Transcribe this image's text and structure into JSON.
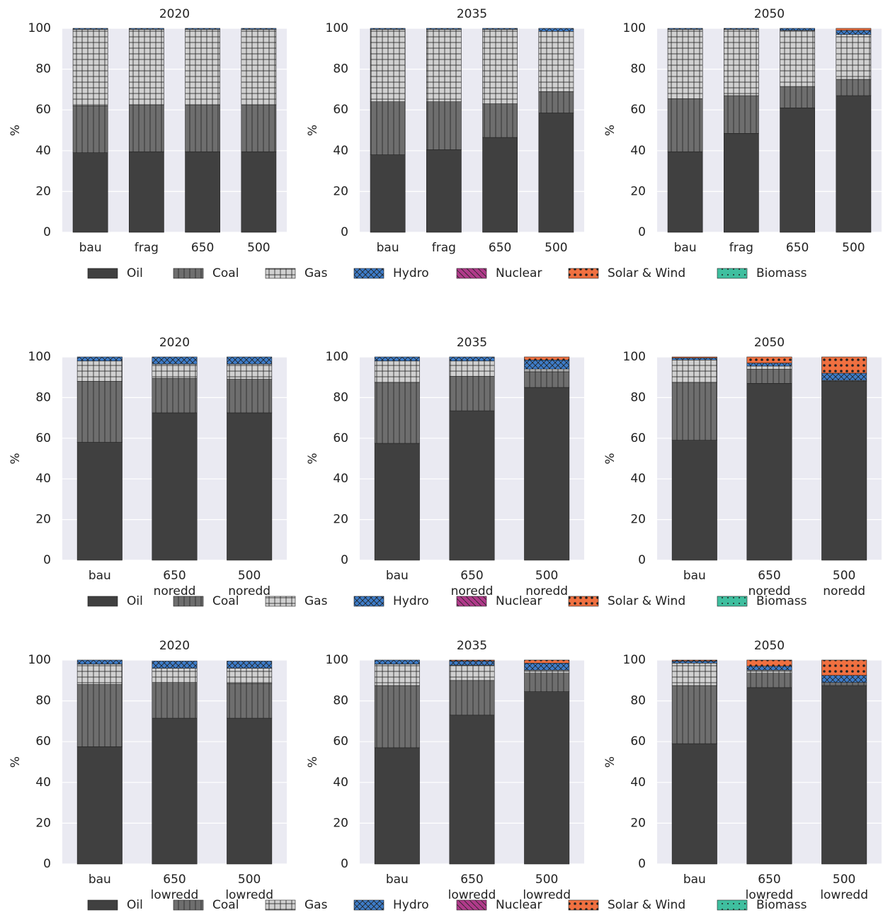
{
  "chart_data": [
    {
      "type": "bar",
      "stacked": true,
      "title": "2020",
      "ylabel": "%",
      "categories": [
        "bau",
        "frag",
        "650",
        "500"
      ],
      "ylim": [
        0,
        100
      ],
      "yticks": [
        0,
        20,
        40,
        60,
        80,
        100
      ],
      "grid": true,
      "series": [
        {
          "name": "Oil",
          "color": "#404040",
          "hatch": "",
          "values": [
            39,
            39.5,
            39.5,
            39.5
          ]
        },
        {
          "name": "Coal",
          "color": "#6e6e6e",
          "hatch": "|",
          "values": [
            23,
            23,
            23,
            23
          ]
        },
        {
          "name": "Gas",
          "color": "#d0d0d0",
          "hatch": "+",
          "values": [
            37.5,
            37,
            37,
            37
          ]
        },
        {
          "name": "Hydro",
          "color": "#3d7cc9",
          "hatch": "x",
          "values": [
            0.5,
            0.5,
            0.5,
            0.5
          ]
        },
        {
          "name": "Nuclear",
          "color": "#b03a8a",
          "hatch": "\\",
          "values": [
            0,
            0,
            0,
            0
          ]
        },
        {
          "name": "Solar & Wind",
          "color": "#f07040",
          "hatch": "o",
          "values": [
            0,
            0,
            0,
            0
          ]
        },
        {
          "name": "Biomass",
          "color": "#3fbf9f",
          "hatch": ".",
          "values": [
            0,
            0,
            0,
            0
          ]
        }
      ]
    },
    {
      "type": "bar",
      "stacked": true,
      "title": "2035",
      "ylabel": "%",
      "categories": [
        "bau",
        "frag",
        "650",
        "500"
      ],
      "ylim": [
        0,
        100
      ],
      "yticks": [
        0,
        20,
        40,
        60,
        80,
        100
      ],
      "grid": true,
      "series": [
        {
          "name": "Oil",
          "color": "#404040",
          "hatch": "",
          "values": [
            38,
            40.5,
            46.5,
            58.5
          ]
        },
        {
          "name": "Coal",
          "color": "#6e6e6e",
          "hatch": "|",
          "values": [
            26,
            23.5,
            16.5,
            10.5
          ]
        },
        {
          "name": "Gas",
          "color": "#d0d0d0",
          "hatch": "+",
          "values": [
            35.5,
            35.5,
            36.5,
            29.5
          ]
        },
        {
          "name": "Hydro",
          "color": "#3d7cc9",
          "hatch": "x",
          "values": [
            0.5,
            0.5,
            0.5,
            1.5
          ]
        },
        {
          "name": "Nuclear",
          "color": "#b03a8a",
          "hatch": "\\",
          "values": [
            0,
            0,
            0,
            0
          ]
        },
        {
          "name": "Solar & Wind",
          "color": "#f07040",
          "hatch": "o",
          "values": [
            0,
            0,
            0,
            0
          ]
        },
        {
          "name": "Biomass",
          "color": "#3fbf9f",
          "hatch": ".",
          "values": [
            0,
            0,
            0,
            0
          ]
        }
      ]
    },
    {
      "type": "bar",
      "stacked": true,
      "title": "2050",
      "ylabel": "%",
      "categories": [
        "bau",
        "frag",
        "650",
        "500"
      ],
      "ylim": [
        0,
        100
      ],
      "yticks": [
        0,
        20,
        40,
        60,
        80,
        100
      ],
      "grid": true,
      "series": [
        {
          "name": "Oil",
          "color": "#404040",
          "hatch": "",
          "values": [
            39.5,
            48.5,
            61,
            67
          ]
        },
        {
          "name": "Coal",
          "color": "#6e6e6e",
          "hatch": "|",
          "values": [
            26,
            18.5,
            10.5,
            8
          ]
        },
        {
          "name": "Gas",
          "color": "#d0d0d0",
          "hatch": "+",
          "values": [
            34,
            32.5,
            27.5,
            22
          ]
        },
        {
          "name": "Hydro",
          "color": "#3d7cc9",
          "hatch": "x",
          "values": [
            0.5,
            0.5,
            1,
            2
          ]
        },
        {
          "name": "Nuclear",
          "color": "#b03a8a",
          "hatch": "\\",
          "values": [
            0,
            0,
            0,
            0
          ]
        },
        {
          "name": "Solar & Wind",
          "color": "#f07040",
          "hatch": "o",
          "values": [
            0,
            0,
            0,
            1
          ]
        },
        {
          "name": "Biomass",
          "color": "#3fbf9f",
          "hatch": ".",
          "values": [
            0,
            0,
            0,
            0
          ]
        }
      ]
    },
    {
      "type": "bar",
      "stacked": true,
      "title": "2020",
      "ylabel": "%",
      "categories": [
        "bau",
        "650\nnoredd",
        "500\nnoredd"
      ],
      "ylim": [
        0,
        100
      ],
      "yticks": [
        0,
        20,
        40,
        60,
        80,
        100
      ],
      "grid": true,
      "series": [
        {
          "name": "Oil",
          "color": "#404040",
          "hatch": "",
          "values": [
            58,
            72.5,
            72.5
          ]
        },
        {
          "name": "Coal",
          "color": "#6e6e6e",
          "hatch": "|",
          "values": [
            30,
            17,
            16.5
          ]
        },
        {
          "name": "Gas",
          "color": "#d0d0d0",
          "hatch": "+",
          "values": [
            10,
            7,
            7.5
          ]
        },
        {
          "name": "Hydro",
          "color": "#3d7cc9",
          "hatch": "x",
          "values": [
            2,
            3.5,
            3.5
          ]
        },
        {
          "name": "Nuclear",
          "color": "#b03a8a",
          "hatch": "\\",
          "values": [
            0,
            0,
            0
          ]
        },
        {
          "name": "Solar & Wind",
          "color": "#f07040",
          "hatch": "o",
          "values": [
            0,
            0,
            0
          ]
        },
        {
          "name": "Biomass",
          "color": "#3fbf9f",
          "hatch": ".",
          "values": [
            0,
            0,
            0
          ]
        }
      ]
    },
    {
      "type": "bar",
      "stacked": true,
      "title": "2035",
      "ylabel": "%",
      "categories": [
        "bau",
        "650\nnoredd",
        "500\nnoredd"
      ],
      "ylim": [
        0,
        100
      ],
      "yticks": [
        0,
        20,
        40,
        60,
        80,
        100
      ],
      "grid": true,
      "series": [
        {
          "name": "Oil",
          "color": "#404040",
          "hatch": "",
          "values": [
            57.5,
            73.5,
            85
          ]
        },
        {
          "name": "Coal",
          "color": "#6e6e6e",
          "hatch": "|",
          "values": [
            30,
            17,
            7.5
          ]
        },
        {
          "name": "Gas",
          "color": "#d0d0d0",
          "hatch": "+",
          "values": [
            10.5,
            7.5,
            1.5
          ]
        },
        {
          "name": "Hydro",
          "color": "#3d7cc9",
          "hatch": "x",
          "values": [
            2,
            2,
            4.5
          ]
        },
        {
          "name": "Nuclear",
          "color": "#b03a8a",
          "hatch": "\\",
          "values": [
            0,
            0,
            0
          ]
        },
        {
          "name": "Solar & Wind",
          "color": "#f07040",
          "hatch": "o",
          "values": [
            0,
            0,
            1.5
          ]
        },
        {
          "name": "Biomass",
          "color": "#3fbf9f",
          "hatch": ".",
          "values": [
            0,
            0,
            0
          ]
        }
      ]
    },
    {
      "type": "bar",
      "stacked": true,
      "title": "2050",
      "ylabel": "%",
      "categories": [
        "bau",
        "650\nnoredd",
        "500\nnoredd"
      ],
      "ylim": [
        0,
        100
      ],
      "yticks": [
        0,
        20,
        40,
        60,
        80,
        100
      ],
      "grid": true,
      "series": [
        {
          "name": "Oil",
          "color": "#404040",
          "hatch": "",
          "values": [
            59,
            87,
            88
          ]
        },
        {
          "name": "Coal",
          "color": "#6e6e6e",
          "hatch": "|",
          "values": [
            28.5,
            7,
            0.5
          ]
        },
        {
          "name": "Gas",
          "color": "#d0d0d0",
          "hatch": "+",
          "values": [
            11,
            1.5,
            0
          ]
        },
        {
          "name": "Hydro",
          "color": "#3d7cc9",
          "hatch": "x",
          "values": [
            1,
            1.5,
            3.5
          ]
        },
        {
          "name": "Nuclear",
          "color": "#b03a8a",
          "hatch": "\\",
          "values": [
            0,
            0,
            0
          ]
        },
        {
          "name": "Solar & Wind",
          "color": "#f07040",
          "hatch": "o",
          "values": [
            0.5,
            3,
            8
          ]
        },
        {
          "name": "Biomass",
          "color": "#3fbf9f",
          "hatch": ".",
          "values": [
            0,
            0,
            0
          ]
        }
      ]
    },
    {
      "type": "bar",
      "stacked": true,
      "title": "2020",
      "ylabel": "%",
      "categories": [
        "bau",
        "650\nlowredd",
        "500\nlowredd"
      ],
      "ylim": [
        0,
        100
      ],
      "yticks": [
        0,
        20,
        40,
        60,
        80,
        100
      ],
      "grid": true,
      "series": [
        {
          "name": "Oil",
          "color": "#404040",
          "hatch": "",
          "values": [
            57.5,
            71.5,
            71.5
          ]
        },
        {
          "name": "Coal",
          "color": "#6e6e6e",
          "hatch": "|",
          "values": [
            30.5,
            17.5,
            17
          ]
        },
        {
          "name": "Gas",
          "color": "#d0d0d0",
          "hatch": "+",
          "values": [
            10,
            7,
            7.5
          ]
        },
        {
          "name": "Hydro",
          "color": "#3d7cc9",
          "hatch": "x",
          "values": [
            2,
            3.5,
            3.5
          ]
        },
        {
          "name": "Nuclear",
          "color": "#b03a8a",
          "hatch": "\\",
          "values": [
            0,
            0,
            0
          ]
        },
        {
          "name": "Solar & Wind",
          "color": "#f07040",
          "hatch": "o",
          "values": [
            0,
            0,
            0
          ]
        },
        {
          "name": "Biomass",
          "color": "#3fbf9f",
          "hatch": ".",
          "values": [
            0,
            0,
            0
          ]
        }
      ]
    },
    {
      "type": "bar",
      "stacked": true,
      "title": "2035",
      "ylabel": "%",
      "categories": [
        "bau",
        "650\nlowredd",
        "500\nlowredd"
      ],
      "ylim": [
        0,
        100
      ],
      "yticks": [
        0,
        20,
        40,
        60,
        80,
        100
      ],
      "grid": true,
      "series": [
        {
          "name": "Oil",
          "color": "#404040",
          "hatch": "",
          "values": [
            57,
            73,
            84.5
          ]
        },
        {
          "name": "Coal",
          "color": "#6e6e6e",
          "hatch": "|",
          "values": [
            30.5,
            17,
            9
          ]
        },
        {
          "name": "Gas",
          "color": "#d0d0d0",
          "hatch": "+",
          "values": [
            10.5,
            7.5,
            1.5
          ]
        },
        {
          "name": "Hydro",
          "color": "#3d7cc9",
          "hatch": "x",
          "values": [
            2,
            2,
            3.5
          ]
        },
        {
          "name": "Nuclear",
          "color": "#b03a8a",
          "hatch": "\\",
          "values": [
            0,
            0,
            0
          ]
        },
        {
          "name": "Solar & Wind",
          "color": "#f07040",
          "hatch": "o",
          "values": [
            0,
            0.5,
            1.5
          ]
        },
        {
          "name": "Biomass",
          "color": "#3fbf9f",
          "hatch": ".",
          "values": [
            0,
            0,
            0
          ]
        }
      ]
    },
    {
      "type": "bar",
      "stacked": true,
      "title": "2050",
      "ylabel": "%",
      "categories": [
        "bau",
        "650\nlowredd",
        "500\nlowredd"
      ],
      "ylim": [
        0,
        100
      ],
      "yticks": [
        0,
        20,
        40,
        60,
        80,
        100
      ],
      "grid": true,
      "series": [
        {
          "name": "Oil",
          "color": "#404040",
          "hatch": "",
          "values": [
            59,
            86.5,
            87.5
          ]
        },
        {
          "name": "Coal",
          "color": "#6e6e6e",
          "hatch": "|",
          "values": [
            28.5,
            7,
            1.5
          ]
        },
        {
          "name": "Gas",
          "color": "#d0d0d0",
          "hatch": "+",
          "values": [
            11,
            1.5,
            0
          ]
        },
        {
          "name": "Hydro",
          "color": "#3d7cc9",
          "hatch": "x",
          "values": [
            1,
            2,
            3.5
          ]
        },
        {
          "name": "Nuclear",
          "color": "#b03a8a",
          "hatch": "\\",
          "values": [
            0,
            0,
            0
          ]
        },
        {
          "name": "Solar & Wind",
          "color": "#f07040",
          "hatch": "o",
          "values": [
            0.5,
            3,
            7.5
          ]
        },
        {
          "name": "Biomass",
          "color": "#3fbf9f",
          "hatch": ".",
          "values": [
            0,
            0,
            0
          ]
        }
      ]
    }
  ]
}
